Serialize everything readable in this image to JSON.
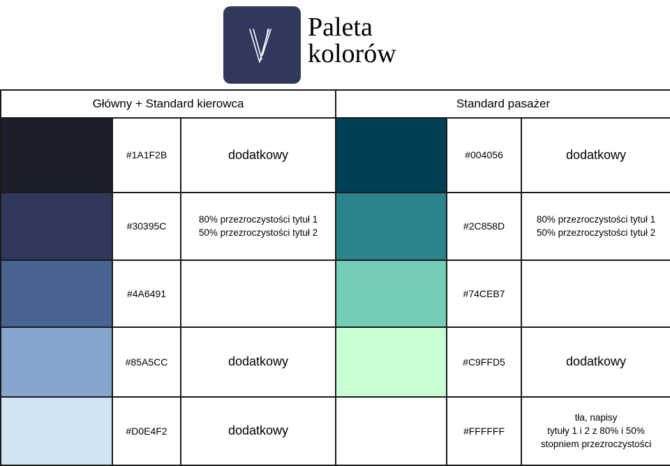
{
  "header": {
    "logo_letter": "V",
    "title_line1": "Paleta",
    "title_line2": "kolorów"
  },
  "groups": [
    {
      "title": "Główny + Standard kierowca",
      "rows": [
        {
          "color": "#1A1F2B",
          "hex": "#1A1F2B",
          "notes": [
            "dodatkowy"
          ]
        },
        {
          "color": "#30395C",
          "hex": "#30395C",
          "notes": [
            "80% przezroczystości tytuł 1",
            "50% przezroczystości tytuł 2"
          ]
        },
        {
          "color": "#4A6491",
          "hex": "#4A6491",
          "notes": []
        },
        {
          "color": "#85A5CC",
          "hex": "#85A5CC",
          "notes": [
            "dodatkowy"
          ]
        },
        {
          "color": "#D0E4F2",
          "hex": "#D0E4F2",
          "notes": [
            "dodatkowy"
          ]
        }
      ]
    },
    {
      "title": "Standard pasażer",
      "rows": [
        {
          "color": "#004056",
          "hex": "#004056",
          "notes": [
            "dodatkowy"
          ]
        },
        {
          "color": "#2C858D",
          "hex": "#2C858D",
          "notes": [
            "80% przezroczystości tytuł 1",
            "50% przezroczystości tytuł 2"
          ]
        },
        {
          "color": "#74CEB7",
          "hex": "#74CEB7",
          "notes": []
        },
        {
          "color": "#C9FFD5",
          "hex": "#C9FFD5",
          "notes": [
            "dodatkowy"
          ]
        },
        {
          "color": "#FFFFFF",
          "hex": "#FFFFFF",
          "notes": [
            "tła, napisy",
            "tytuły 1 i 2 z 80% i 50%",
            "stopniem przezroczystości"
          ]
        }
      ]
    }
  ]
}
